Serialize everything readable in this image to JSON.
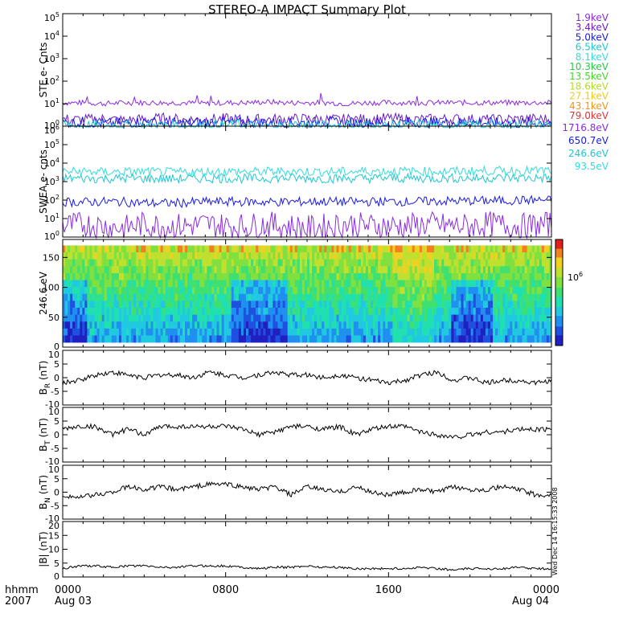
{
  "title": "STEREO-A IMPACT Summary Plot",
  "footer": {
    "hhmm_label": "hhmm",
    "year_label": "2007",
    "start_date": "Aug 03",
    "end_date": "Aug 04",
    "time_ticks": [
      "0000",
      "0800",
      "1600",
      "0000"
    ]
  },
  "side_stamp": "Wed Dec 14 16:15:33 2008",
  "chart_data": [
    {
      "id": "ste",
      "type": "line",
      "ylabel": "STE e- Cnts",
      "yscale": "log",
      "ylim": [
        1,
        100000
      ],
      "y_ticks": [
        "10^0",
        "10^1",
        "10^2",
        "10^3",
        "10^4",
        "10^5"
      ],
      "series": [
        {
          "name": "1.9keV",
          "color": "#8a2be2",
          "values": [
            11,
            11,
            10,
            11,
            11,
            11,
            11,
            10,
            11,
            11,
            12,
            11,
            11,
            11,
            10,
            11,
            11,
            11,
            11,
            11,
            11,
            11,
            11,
            11,
            11
          ]
        },
        {
          "name": "3.4keV",
          "color": "#6a1ec8",
          "values": [
            2.0,
            1.9,
            2.1,
            1.8,
            2.0,
            2.2,
            1.9,
            2.0,
            2.1,
            1.9,
            2.0,
            2.0,
            2.1,
            1.9,
            2.0,
            2.0,
            2.2,
            1.9,
            2.0,
            2.1,
            2.0,
            1.9,
            2.0,
            2.1,
            2.0
          ]
        },
        {
          "name": "5.0keV",
          "color": "#1a1ae6",
          "values": [
            1.4,
            1.5,
            1.3,
            1.4,
            1.5,
            1.4,
            1.3,
            1.5,
            1.4,
            1.4,
            1.5,
            1.3,
            1.4,
            1.5,
            1.4,
            1.4,
            1.3,
            1.5,
            1.4,
            1.4,
            1.5,
            1.4,
            1.3,
            1.4,
            1.5
          ]
        },
        {
          "name": "6.5keV",
          "color": "#1ec8d2",
          "values": [
            1.1,
            1.0,
            1.1,
            1.1,
            1.0,
            1.1,
            1.1,
            1.0,
            1.1,
            1.1,
            1.0,
            1.1,
            1.1,
            1.0,
            1.1,
            1.1,
            1.0,
            1.1,
            1.1,
            1.0,
            1.1,
            1.1,
            1.0,
            1.1,
            1.1
          ]
        },
        {
          "name": "8.1keV",
          "color": "#32dcdc",
          "values": []
        },
        {
          "name": "10.3keV",
          "color": "#22cc44",
          "values": []
        },
        {
          "name": "13.5keV",
          "color": "#44d822",
          "values": []
        },
        {
          "name": "18.6keV",
          "color": "#b4dc1e",
          "values": []
        },
        {
          "name": "27.1keV",
          "color": "#f0c81e",
          "values": []
        },
        {
          "name": "43.1keV",
          "color": "#f09614",
          "values": []
        },
        {
          "name": "79.0keV",
          "color": "#e63232",
          "values": []
        }
      ]
    },
    {
      "id": "swea",
      "type": "line",
      "ylabel": "SWEA e- cnts",
      "yscale": "log",
      "ylim": [
        1,
        1000000
      ],
      "y_ticks": [
        "10^0",
        "10^1",
        "10^2",
        "10^3",
        "10^4",
        "10^5",
        "10^6"
      ],
      "series": [
        {
          "name": "1716.8eV",
          "color": "#8a2be2",
          "values": [
            4,
            5,
            4,
            3,
            5,
            4,
            4,
            5,
            4,
            4,
            5,
            4,
            3,
            4,
            5,
            4,
            4,
            4,
            5,
            4,
            4,
            5,
            4,
            4,
            5
          ]
        },
        {
          "name": "650.7eV",
          "color": "#1a1ae6",
          "values": [
            80,
            78,
            82,
            80,
            70,
            68,
            72,
            80,
            82,
            80,
            78,
            80,
            82,
            85,
            80,
            82,
            84,
            82,
            86,
            88,
            90,
            92,
            95,
            100,
            100
          ]
        },
        {
          "name": "246.6eV",
          "color": "#1ec8d2",
          "values": [
            1500,
            1500,
            1450,
            1500,
            1450,
            1400,
            1450,
            1500,
            1500,
            1450,
            1500,
            1550,
            1500,
            1450,
            1500,
            1500,
            1550,
            1500,
            1500,
            1550,
            1500,
            1550,
            1600,
            1550,
            1600
          ]
        },
        {
          "name": "93.5eV",
          "color": "#32dcdc",
          "values": [
            3500,
            3500,
            3300,
            3400,
            3400,
            3200,
            3300,
            3400,
            3500,
            3400,
            3500,
            3600,
            3500,
            3400,
            3500,
            3600,
            3700,
            3600,
            3500,
            3600,
            3700,
            3800,
            3800,
            3900,
            3900
          ]
        }
      ]
    },
    {
      "id": "pad",
      "type": "heatmap",
      "ylabel": "246.6 eV",
      "ylim": [
        0,
        180
      ],
      "y_ticks": [
        0,
        50,
        100,
        150
      ],
      "colorbar_label": "10^6"
    },
    {
      "id": "br",
      "type": "line",
      "ylabel": "B_R (nT)",
      "ylim": [
        -10,
        10
      ],
      "y_ticks": [
        -10,
        -5,
        0,
        5,
        10
      ],
      "values": [
        -2,
        -1,
        1,
        2,
        1,
        0,
        1,
        1,
        0,
        2,
        1,
        0,
        1,
        2,
        1,
        1,
        0,
        1,
        0,
        -1,
        -2,
        -1,
        1,
        2,
        -1,
        0,
        -2,
        -1,
        -1,
        -2,
        -1
      ]
    },
    {
      "id": "bt",
      "type": "line",
      "ylabel": "B_T (nT)",
      "ylim": [
        -10,
        10
      ],
      "y_ticks": [
        -10,
        -5,
        0,
        5,
        10
      ],
      "values": [
        2,
        3,
        3,
        0,
        2,
        0,
        3,
        3,
        3,
        3,
        3,
        2,
        0,
        1,
        3,
        3,
        2,
        3,
        0,
        2,
        3,
        3,
        1,
        0,
        -1,
        0,
        1,
        1,
        2,
        2,
        2
      ]
    },
    {
      "id": "bn",
      "type": "line",
      "ylabel": "B_N (nT)",
      "ylim": [
        -10,
        10
      ],
      "y_ticks": [
        -10,
        -5,
        0,
        5,
        10
      ],
      "values": [
        -1,
        -2,
        -1,
        0,
        2,
        1,
        2,
        1,
        2,
        3,
        3,
        2,
        1,
        2,
        -1,
        2,
        1,
        0,
        2,
        0,
        -1,
        0,
        1,
        0,
        2,
        1,
        1,
        2,
        1,
        -1,
        -1
      ]
    },
    {
      "id": "bmag",
      "type": "line",
      "ylabel": "|B| (nT)",
      "ylim": [
        0,
        20
      ],
      "y_ticks": [
        0,
        5,
        10,
        15,
        20
      ],
      "values": [
        3,
        4,
        4,
        3.5,
        4,
        4,
        3.5,
        3.5,
        4,
        4,
        4,
        3.5,
        3,
        3.5,
        3.5,
        4,
        3.5,
        3.5,
        3,
        3,
        3,
        3,
        3.5,
        3,
        2.5,
        3,
        3,
        3,
        3.5,
        3,
        3
      ]
    }
  ]
}
